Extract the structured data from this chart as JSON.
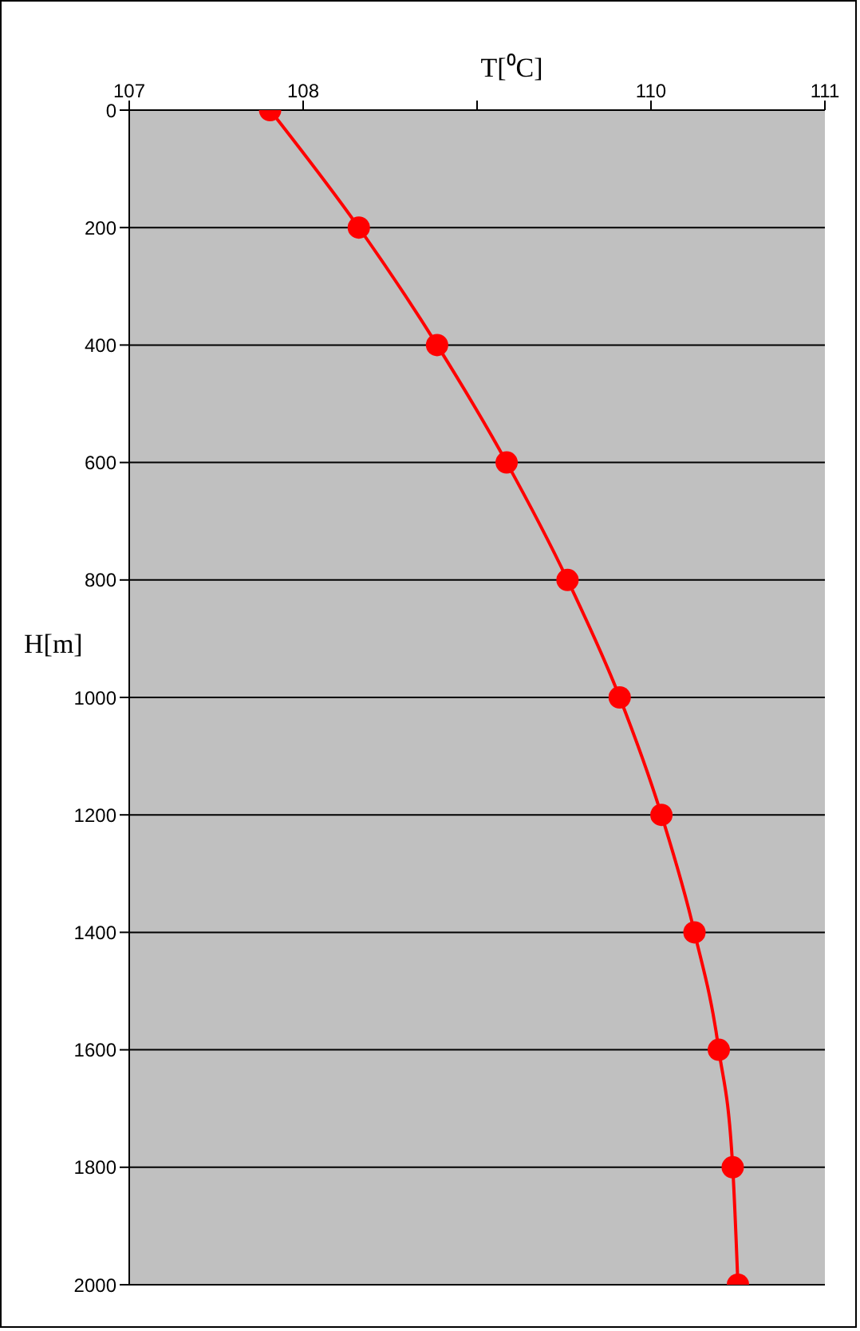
{
  "chart_data": {
    "type": "line",
    "xlabel": "T[⁰C]",
    "ylabel": "H[m]",
    "x": [
      107.81,
      108.32,
      108.77,
      109.17,
      109.52,
      109.82,
      110.06,
      110.25,
      110.39,
      110.47,
      110.5
    ],
    "series": [
      {
        "color": "#ff0000",
        "values": [
          0,
          200,
          400,
          600,
          800,
          1000,
          1200,
          1400,
          1600,
          1800,
          2000
        ]
      }
    ],
    "xlim": [
      107,
      111
    ],
    "xticks": [
      107,
      108,
      {
        "value": 109,
        "label": null
      },
      110,
      111
    ],
    "ylim": [
      2000,
      0
    ],
    "yticks": [
      0,
      200,
      400,
      600,
      800,
      1000,
      1200,
      1400,
      1600,
      1800,
      2000
    ],
    "grid": "y",
    "legend": false,
    "marker": "circle",
    "line_style": "solid"
  }
}
